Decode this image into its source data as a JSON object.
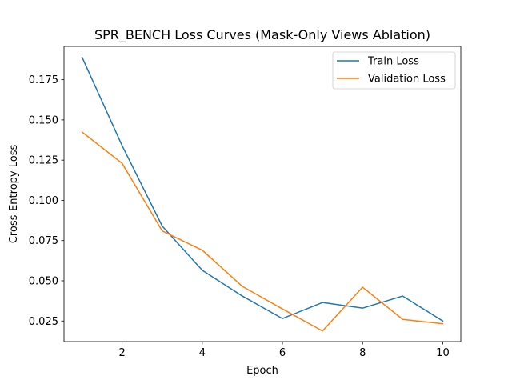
{
  "chart_data": {
    "type": "line",
    "title": "SPR_BENCH Loss Curves (Mask-Only Views Ablation)",
    "xlabel": "Epoch",
    "ylabel": "Cross-Entropy Loss",
    "x": [
      1,
      2,
      3,
      4,
      5,
      6,
      7,
      8,
      9,
      10
    ],
    "xlim": [
      0.55,
      10.45
    ],
    "ylim": [
      0.0122,
      0.1957
    ],
    "xticks": [
      2,
      4,
      6,
      8,
      10
    ],
    "yticks": [
      0.025,
      0.05,
      0.075,
      0.1,
      0.125,
      0.15,
      0.175
    ],
    "xtick_labels": [
      "2",
      "4",
      "6",
      "8",
      "10"
    ],
    "ytick_labels": [
      "0.025",
      "0.050",
      "0.075",
      "0.100",
      "0.125",
      "0.150",
      "0.175"
    ],
    "grid": false,
    "legend_position": "top-right",
    "series": [
      {
        "name": "Train Loss",
        "color": "#1f77b4",
        "values": [
          0.189,
          0.134,
          0.084,
          0.0565,
          0.0405,
          0.0265,
          0.0365,
          0.033,
          0.0405,
          0.025
        ]
      },
      {
        "name": "Validation Loss",
        "color": "#ff7f0e",
        "values": [
          0.1425,
          0.123,
          0.081,
          0.069,
          0.0465,
          0.0325,
          0.0188,
          0.046,
          0.026,
          0.0233
        ]
      }
    ]
  }
}
